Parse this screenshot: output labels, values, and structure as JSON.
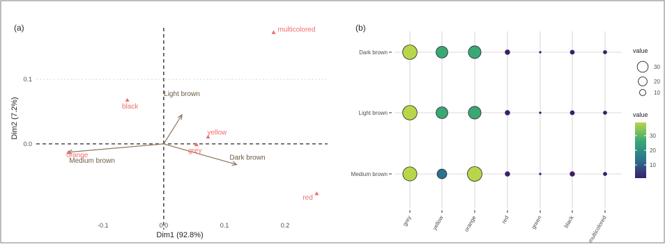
{
  "panel_labels": {
    "a": "(a)",
    "b": "(b)"
  },
  "colors": {
    "point": "#F26B6B",
    "arrow": "#8B7355",
    "arrow_label": "#6B5A45",
    "axis_text": "#4d4d4d",
    "grid": "#e5e5e5",
    "viridis": [
      "#3b1f6b",
      "#2c728e",
      "#3aa874",
      "#b8d64a"
    ]
  },
  "chart_data": [
    {
      "type": "scatter",
      "panel": "(a)",
      "xlabel": "Dim1 (92.8%)",
      "ylabel": "Dim2 (7.2%)",
      "xlim": [
        -0.21,
        0.27
      ],
      "ylim": [
        -0.12,
        0.18
      ],
      "xticks": [
        -0.1,
        0.0,
        0.1,
        0.2
      ],
      "xtick_labels": [
        "-0.1",
        "0.0",
        "0.1",
        "0.2"
      ],
      "yticks": [
        0.0,
        0.1
      ],
      "ytick_labels": [
        "0.0",
        "0.1"
      ],
      "points": [
        {
          "label": "multicolored",
          "x": 0.181,
          "y": 0.173
        },
        {
          "label": "black",
          "x": -0.06,
          "y": 0.068
        },
        {
          "label": "yellow",
          "x": 0.073,
          "y": 0.011
        },
        {
          "label": "grey",
          "x": 0.054,
          "y": -0.001
        },
        {
          "label": "orange",
          "x": -0.157,
          "y": -0.013
        },
        {
          "label": "red",
          "x": 0.252,
          "y": -0.077
        }
      ],
      "arrows": [
        {
          "label": "Light brown",
          "x": 0.03,
          "y": 0.045
        },
        {
          "label": "Dark brown",
          "x": 0.12,
          "y": -0.032
        },
        {
          "label": "Medium brown",
          "x": -0.158,
          "y": -0.013
        }
      ]
    },
    {
      "type": "balloon",
      "panel": "(b)",
      "x_categories": [
        "grey",
        "yellow",
        "orange",
        "red",
        "green",
        "black",
        "multicolored"
      ],
      "y_categories": [
        "Dark brown",
        "Light brown",
        "Medium brown"
      ],
      "values": [
        [
          38,
          25,
          29,
          5,
          1,
          4,
          3
        ],
        [
          38,
          25,
          29,
          5,
          1,
          4,
          3
        ],
        [
          36,
          17,
          39,
          5,
          1,
          5,
          3
        ]
      ],
      "size_legend": {
        "title": "value",
        "breaks": [
          30,
          20,
          10
        ]
      },
      "color_legend": {
        "title": "value",
        "breaks": [
          30,
          20,
          10
        ],
        "range": [
          1,
          39
        ]
      }
    }
  ]
}
